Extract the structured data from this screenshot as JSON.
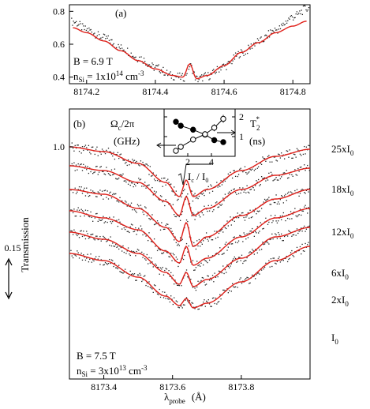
{
  "chart_data": [
    {
      "id": "a",
      "type": "scatter",
      "panel_label": "(a)",
      "annotations": {
        "field": "B = 6.9 T",
        "density": "n",
        "density_sub": "Si",
        "density_val": " = 1x10",
        "density_exp": "14",
        "density_unit": " cm",
        "density_unit_exp": "-3"
      },
      "xlim": [
        8174.15,
        8174.85
      ],
      "ylim": [
        0.36,
        0.84
      ],
      "xticks": [
        "8174.2",
        "8174.4",
        "8174.6",
        "8174.8"
      ],
      "xtick_values": [
        8174.2,
        8174.4,
        8174.6,
        8174.8
      ],
      "yticks": [
        "0.4",
        "0.6",
        "0.8"
      ],
      "ytick_values": [
        0.4,
        0.6,
        0.8
      ],
      "series": [
        {
          "kind": "measured",
          "x": [
            8174.16,
            8174.2,
            8174.25,
            8174.3,
            8174.35,
            8174.4,
            8174.45,
            8174.48,
            8174.5,
            8174.52,
            8174.55,
            8174.6,
            8174.65,
            8174.7,
            8174.75,
            8174.8,
            8174.84
          ],
          "y": [
            0.74,
            0.69,
            0.64,
            0.58,
            0.52,
            0.46,
            0.41,
            0.4,
            0.47,
            0.39,
            0.41,
            0.47,
            0.55,
            0.62,
            0.69,
            0.77,
            0.82
          ]
        },
        {
          "kind": "fit",
          "x": [
            8174.16,
            8174.2,
            8174.25,
            8174.3,
            8174.35,
            8174.4,
            8174.45,
            8174.48,
            8174.5,
            8174.52,
            8174.55,
            8174.6,
            8174.65,
            8174.7,
            8174.75,
            8174.8,
            8174.84
          ],
          "y": [
            0.7,
            0.67,
            0.62,
            0.56,
            0.5,
            0.45,
            0.41,
            0.4,
            0.48,
            0.39,
            0.41,
            0.47,
            0.55,
            0.61,
            0.67,
            0.71,
            0.74
          ]
        }
      ]
    },
    {
      "id": "b",
      "type": "scatter",
      "panel_label": "(b)",
      "ylabel": "Transmission",
      "xlabel_main": "λ",
      "xlabel_sub": "probe",
      "xlabel_unit": "(Å)",
      "xlim": [
        8173.3,
        8174.0
      ],
      "xticks": [
        "8173.4",
        "8173.6",
        "8173.8"
      ],
      "xtick_values": [
        8173.4,
        8173.6,
        8173.8
      ],
      "ytick_label": "1.0",
      "scale_bar_label": "0.15",
      "annotations": {
        "field": "B = 7.5 T",
        "density": "n",
        "density_sub": "Si",
        "density_val": " = 3x10",
        "density_exp": "13",
        "density_unit": " cm",
        "density_unit_exp": "-3"
      },
      "trace_labels": [
        {
          "main": "25xI",
          "sub": "0"
        },
        {
          "main": "18xI",
          "sub": "0"
        },
        {
          "main": "12xI",
          "sub": "0"
        },
        {
          "main": "6xI",
          "sub": "0"
        },
        {
          "main": "2xI",
          "sub": "0"
        },
        {
          "main": "I",
          "sub": "0"
        }
      ],
      "series": [
        {
          "name": "25xI0",
          "x": [
            8173.3,
            8173.4,
            8173.5,
            8173.58,
            8173.62,
            8173.64,
            8173.66,
            8173.7,
            8173.8,
            8173.9,
            8174.0
          ],
          "y": [
            1.0,
            0.98,
            0.93,
            0.85,
            0.79,
            0.86,
            0.79,
            0.82,
            0.9,
            0.96,
            0.99
          ]
        },
        {
          "name": "18xI0",
          "x": [
            8173.3,
            8173.4,
            8173.5,
            8173.58,
            8173.62,
            8173.64,
            8173.66,
            8173.7,
            8173.8,
            8173.9,
            8174.0
          ],
          "y": [
            0.92,
            0.9,
            0.85,
            0.77,
            0.71,
            0.79,
            0.71,
            0.74,
            0.82,
            0.88,
            0.91
          ]
        },
        {
          "name": "12xI0",
          "x": [
            8173.3,
            8173.4,
            8173.5,
            8173.58,
            8173.62,
            8173.64,
            8173.66,
            8173.7,
            8173.8,
            8173.9,
            8174.0
          ],
          "y": [
            0.82,
            0.8,
            0.74,
            0.66,
            0.6,
            0.68,
            0.58,
            0.62,
            0.71,
            0.78,
            0.82
          ]
        },
        {
          "name": "6xI0",
          "x": [
            8173.3,
            8173.4,
            8173.5,
            8173.58,
            8173.62,
            8173.64,
            8173.66,
            8173.7,
            8173.8,
            8173.9,
            8174.0
          ],
          "y": [
            0.73,
            0.7,
            0.65,
            0.56,
            0.51,
            0.58,
            0.5,
            0.53,
            0.62,
            0.7,
            0.74
          ]
        },
        {
          "name": "2xI0",
          "x": [
            8173.3,
            8173.4,
            8173.5,
            8173.58,
            8173.62,
            8173.64,
            8173.66,
            8173.7,
            8173.8,
            8173.9,
            8174.0
          ],
          "y": [
            0.64,
            0.61,
            0.55,
            0.47,
            0.42,
            0.47,
            0.41,
            0.44,
            0.53,
            0.62,
            0.66
          ]
        },
        {
          "name": "I0",
          "x": [
            8173.3,
            8173.4,
            8173.5,
            8173.58,
            8173.62,
            8173.64,
            8173.66,
            8173.7,
            8173.8,
            8173.9,
            8174.0
          ],
          "y": [
            0.55,
            0.52,
            0.45,
            0.37,
            0.33,
            0.36,
            0.32,
            0.34,
            0.43,
            0.52,
            0.58
          ]
        }
      ]
    },
    {
      "id": "inset",
      "type": "line",
      "left_label": "Ω",
      "left_label_sub": "c",
      "left_label_rest": "/2π",
      "left_unit": "(GHz)",
      "right_label": "T",
      "right_label_sub": "2",
      "right_label_sup": "*",
      "right_unit": "(ns)",
      "xlabel": "√I",
      "xlabel_sub": "c",
      "xlabel_rest": " / I",
      "xlabel_sub2": "0",
      "xlim": [
        0,
        6
      ],
      "xticks": [
        "2",
        "4"
      ],
      "xtick_values": [
        2,
        4
      ],
      "ylim_left": [
        0,
        2.4
      ],
      "ylim_right": [
        0,
        2.4
      ],
      "yticks_left": [
        "0",
        "1",
        "2"
      ],
      "yticks_right": [
        "1",
        "2"
      ],
      "series": [
        {
          "name": "T2*",
          "axis": "right",
          "marker": "filled",
          "x": [
            1.0,
            1.41,
            2.45,
            3.46,
            4.24,
            5.0
          ],
          "y": [
            1.75,
            1.55,
            1.35,
            1.1,
            0.82,
            0.72
          ],
          "err": [
            0.15,
            0.15,
            0.12,
            0.12,
            0.1,
            0.08
          ]
        },
        {
          "name": "Ωc/2π",
          "axis": "left",
          "marker": "open",
          "x": [
            1.0,
            1.41,
            2.45,
            3.46,
            4.24,
            5.0
          ],
          "y": [
            0.28,
            0.48,
            0.85,
            1.12,
            1.45,
            1.9
          ],
          "err": [
            0.05,
            0.06,
            0.1,
            0.15,
            0.18,
            0.2
          ]
        }
      ]
    }
  ]
}
